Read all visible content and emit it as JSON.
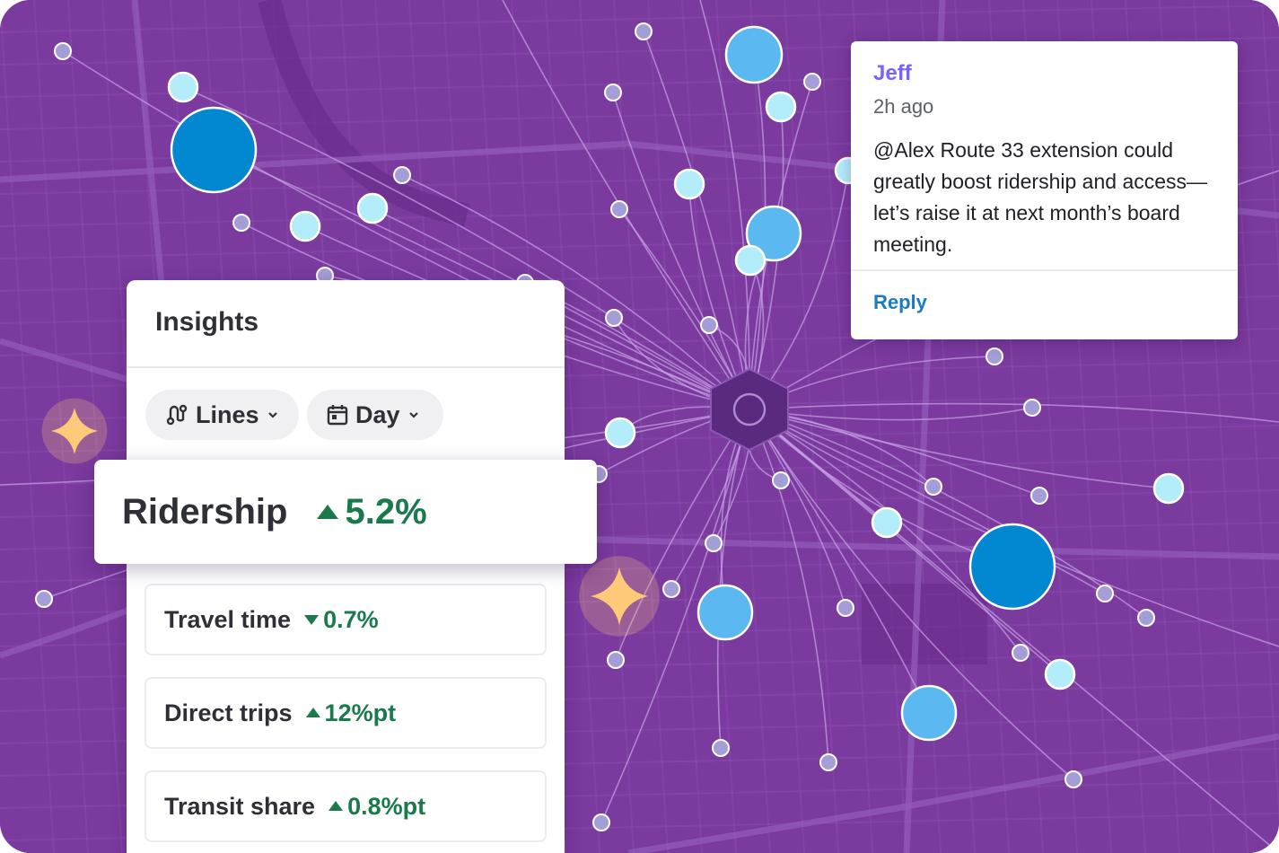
{
  "colors": {
    "map_background": "#7a3a9e",
    "route_lines": "#c9a3e8",
    "hub": "#5a2a80",
    "stop_large_dark": "#0288d1",
    "stop_medium": "#5bb8f0",
    "stop_small_light": "#b3ecfa",
    "stop_minor": "#a49ed8",
    "sparkle": "#ffc97a",
    "positive_change": "#1a7a4c",
    "accent_author": "#7b61ff",
    "link": "#1a7bc2"
  },
  "insights": {
    "title": "Insights",
    "filters": [
      {
        "label": "Lines",
        "icon": "route-icon"
      },
      {
        "label": "Day",
        "icon": "calendar-icon"
      }
    ],
    "ridership": {
      "label": "Ridership",
      "change": "5.2%",
      "direction": "up"
    },
    "metrics": [
      {
        "label": "Travel time",
        "change": "0.7%",
        "direction": "down"
      },
      {
        "label": "Direct trips",
        "change": "12%pt",
        "direction": "up"
      },
      {
        "label": "Transit share",
        "change": "0.8%pt",
        "direction": "up"
      }
    ]
  },
  "comment": {
    "author": "Jeff",
    "time": "2h ago",
    "body": "@Alex Route 33 extension could greatly boost ridership and access—let’s raise it at next month’s board meeting.",
    "reply_label": "Reply"
  },
  "map": {
    "icons": [
      "hub-icon",
      "sparkle-icon"
    ]
  }
}
